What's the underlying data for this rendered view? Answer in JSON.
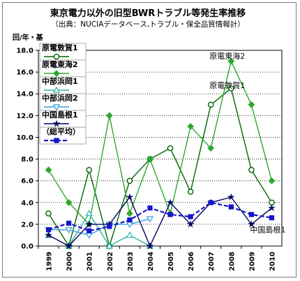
{
  "chart_data": {
    "type": "line",
    "title": "東京電力以外の旧型BWRトラブル等発生率推移",
    "subtitle": "（出典：NUCIAデータベース,トラブル・保全品質情報計）",
    "ylabel": "回/年・基",
    "ylim": [
      0,
      18
    ],
    "yticks": [
      "0.0",
      "2.0",
      "4.0",
      "6.0",
      "8.0",
      "10.0",
      "12.0",
      "14.0",
      "16.0",
      "18.0"
    ],
    "categories": [
      "1999",
      "2000",
      "2001",
      "2002",
      "2003",
      "2004",
      "2005",
      "2006",
      "2007",
      "2008",
      "2009",
      "2010"
    ],
    "grid": true,
    "legend_position": "left-top",
    "series": [
      {
        "name": "原電敦賀1",
        "color": "#006400",
        "marker": "circle",
        "dash": false,
        "values": [
          3,
          0,
          7,
          0,
          6,
          8,
          9,
          5,
          13,
          14.5,
          7,
          4
        ]
      },
      {
        "name": "原電東海2",
        "color": "#2ea82e",
        "marker": "diamond",
        "dash": false,
        "values": [
          7,
          4,
          2,
          12,
          3,
          8,
          3,
          11,
          9,
          17,
          13,
          6
        ]
      },
      {
        "name": "中部浜岡1",
        "color": "#2bb3a8",
        "marker": "triangle-up",
        "dash": false,
        "values": [
          1,
          0,
          3,
          0,
          1,
          0,
          null,
          null,
          null,
          null,
          null,
          null
        ]
      },
      {
        "name": "中部浜岡2",
        "color": "#3a9ee0",
        "marker": "triangle-down",
        "dash": false,
        "values": [
          1.5,
          1.5,
          1,
          2,
          2,
          2.5,
          null,
          null,
          null,
          null,
          null,
          null
        ]
      },
      {
        "name": "中国島根1",
        "color": "#000060",
        "marker": "star",
        "dash": false,
        "values": [
          1,
          0,
          2,
          2,
          4.5,
          0,
          4,
          2,
          4,
          4.5,
          2,
          3.5
        ]
      },
      {
        "name": "（総平均）",
        "color": "#1515cc",
        "marker": "square",
        "dash": true,
        "values": [
          1.5,
          2.1,
          1.4,
          1.8,
          2.4,
          3.5,
          2.9,
          2.7,
          4.0,
          3.6,
          2.9,
          2.6
        ]
      }
    ],
    "annotations": [
      {
        "text": "原電東海2",
        "x": "2007",
        "y": 17.5
      },
      {
        "text": "原電敦賀1",
        "x": "2007",
        "y": 14.8
      },
      {
        "text": "中国島根1",
        "x": "2009",
        "y": 1.5
      }
    ]
  }
}
